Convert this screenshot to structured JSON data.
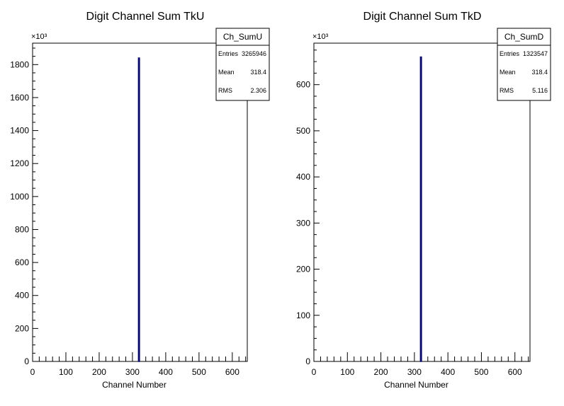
{
  "chart_data": [
    {
      "type": "histogram",
      "title": "Digit Channel Sum TkU",
      "xlabel": "Channel Number",
      "ylabel": "",
      "y_exponent_label": "×10³",
      "xlim": [
        0,
        645
      ],
      "ylim": [
        0,
        1930
      ],
      "x_ticks": [
        0,
        100,
        200,
        300,
        400,
        500,
        600
      ],
      "y_ticks": [
        0,
        200,
        400,
        600,
        800,
        1000,
        1200,
        1400,
        1600,
        1800
      ],
      "series": [
        {
          "bins": [
            {
              "x": 318,
              "x2": 320,
              "value": 1840
            }
          ]
        }
      ],
      "line_color": "#0b0b6e",
      "stats": {
        "name": "Ch_SumU",
        "rows": [
          {
            "label": "Entries",
            "value": "3265946"
          },
          {
            "label": "Mean",
            "value": "318.4"
          },
          {
            "label": "RMS",
            "value": "2.306"
          }
        ]
      }
    },
    {
      "type": "histogram",
      "title": "Digit Channel Sum TkD",
      "xlabel": "Channel Number",
      "ylabel": "",
      "y_exponent_label": "×10³",
      "xlim": [
        0,
        645
      ],
      "ylim": [
        0,
        690
      ],
      "x_ticks": [
        0,
        100,
        200,
        300,
        400,
        500,
        600
      ],
      "y_ticks": [
        0,
        100,
        200,
        300,
        400,
        500,
        600
      ],
      "series": [
        {
          "bins": [
            {
              "x": 318,
              "x2": 320,
              "value": 660
            }
          ]
        }
      ],
      "line_color": "#0b0b6e",
      "stats": {
        "name": "Ch_SumD",
        "rows": [
          {
            "label": "Entries",
            "value": "1323547"
          },
          {
            "label": "Mean",
            "value": "318.4"
          },
          {
            "label": "RMS",
            "value": "5.116"
          }
        ]
      }
    }
  ]
}
